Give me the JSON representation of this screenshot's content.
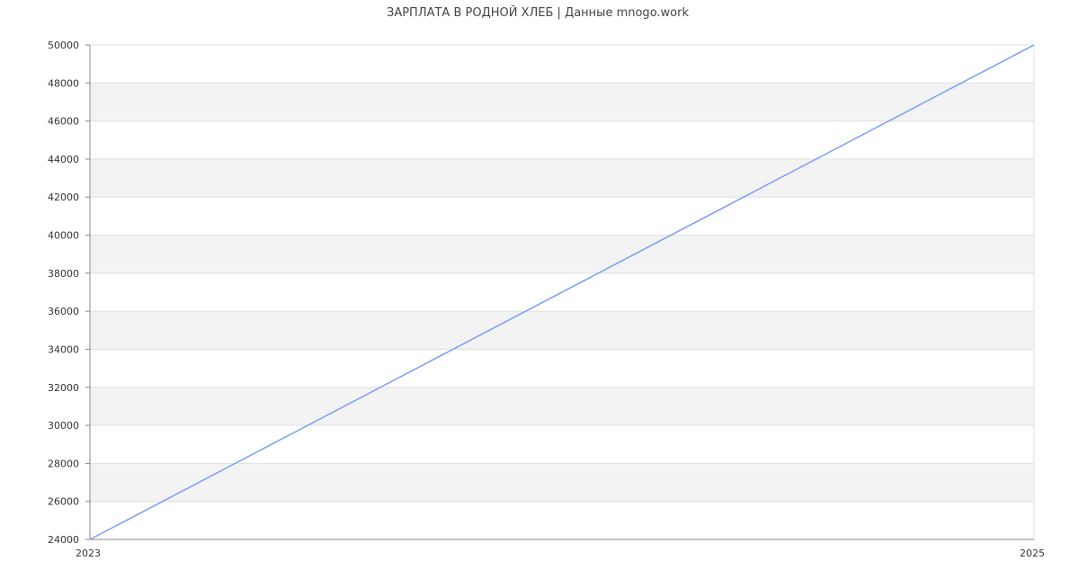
{
  "chart_data": {
    "type": "line",
    "title": "ЗАРПЛАТА В РОДНОЙ ХЛЕБ | Данные mnogo.work",
    "xlabel": "",
    "ylabel": "",
    "x": [
      2023,
      2025
    ],
    "x_tick_labels": [
      "2023",
      "2025"
    ],
    "xlim": [
      2023,
      2025
    ],
    "ylim": [
      24000,
      50000
    ],
    "y_ticks": [
      24000,
      26000,
      28000,
      30000,
      32000,
      34000,
      36000,
      38000,
      40000,
      42000,
      44000,
      46000,
      48000,
      50000
    ],
    "series": [
      {
        "values": [
          24000,
          50000
        ],
        "color": "#779ff4"
      }
    ],
    "grid": true,
    "band_color": "#f3f3f3",
    "grid_color": "#e0e0e0",
    "axis_color": "#888888"
  }
}
